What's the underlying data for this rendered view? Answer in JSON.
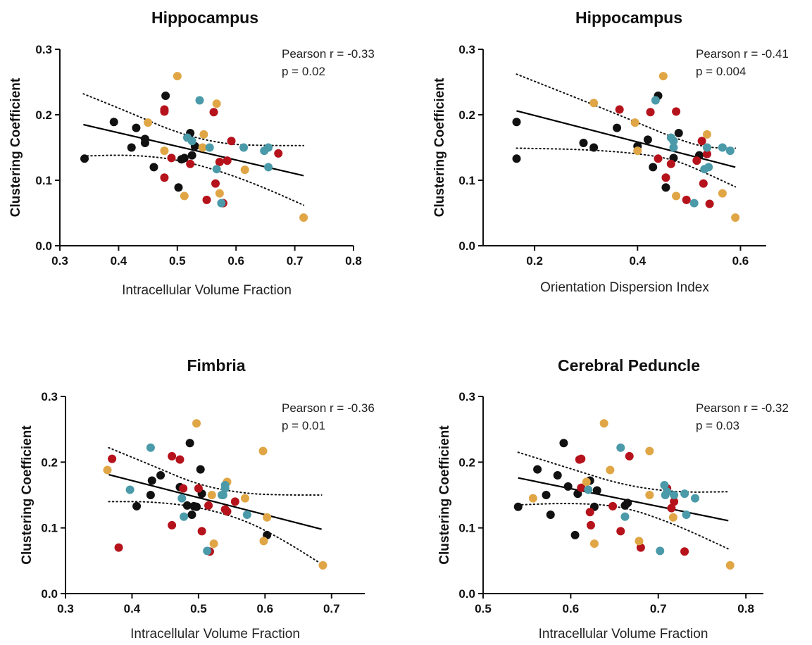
{
  "colors": {
    "black": "#111111",
    "red": "#b5121b",
    "orange": "#e0a645",
    "teal": "#4a9aa9"
  },
  "chart_data": [
    {
      "type": "scatter",
      "title": "Hippocampus",
      "xlabel": "Intracellular Volume Fraction",
      "ylabel": "Clustering Coefficient",
      "xlim": [
        0.3,
        0.8
      ],
      "ylim": [
        0.0,
        0.3
      ],
      "xticks": [
        "0.3",
        "0.4",
        "0.5",
        "0.6",
        "0.7",
        "0.8"
      ],
      "yticks": [
        "0.0",
        "0.1",
        "0.2",
        "0.3"
      ],
      "annotation": [
        "Pearson r = -0.33",
        "p = 0.02"
      ],
      "fit": {
        "x": [
          0.34,
          0.715
        ],
        "y": [
          0.185,
          0.107
        ]
      },
      "ci_upper": [
        [
          0.34,
          0.232
        ],
        [
          0.42,
          0.203
        ],
        [
          0.5,
          0.172
        ],
        [
          0.58,
          0.155
        ],
        [
          0.65,
          0.153
        ],
        [
          0.715,
          0.153
        ]
      ],
      "ci_lower": [
        [
          0.34,
          0.137
        ],
        [
          0.42,
          0.139
        ],
        [
          0.5,
          0.132
        ],
        [
          0.58,
          0.112
        ],
        [
          0.65,
          0.088
        ],
        [
          0.715,
          0.062
        ]
      ],
      "series": [
        {
          "color": "black",
          "points": [
            [
              0.342,
              0.133
            ],
            [
              0.392,
              0.189
            ],
            [
              0.422,
              0.15
            ],
            [
              0.43,
              0.18
            ],
            [
              0.445,
              0.163
            ],
            [
              0.445,
              0.157
            ],
            [
              0.46,
              0.12
            ],
            [
              0.48,
              0.229
            ],
            [
              0.502,
              0.089
            ],
            [
              0.507,
              0.132
            ],
            [
              0.512,
              0.134
            ],
            [
              0.522,
              0.172
            ],
            [
              0.525,
              0.138
            ],
            [
              0.53,
              0.152
            ]
          ]
        },
        {
          "color": "red",
          "points": [
            [
              0.478,
              0.208
            ],
            [
              0.478,
              0.205
            ],
            [
              0.478,
              0.104
            ],
            [
              0.49,
              0.134
            ],
            [
              0.522,
              0.125
            ],
            [
              0.562,
              0.204
            ],
            [
              0.565,
              0.095
            ],
            [
              0.572,
              0.128
            ],
            [
              0.578,
              0.065
            ],
            [
              0.585,
              0.13
            ],
            [
              0.592,
              0.16
            ],
            [
              0.672,
              0.141
            ],
            [
              0.55,
              0.07
            ]
          ]
        },
        {
          "color": "orange",
          "points": [
            [
              0.45,
              0.188
            ],
            [
              0.478,
              0.145
            ],
            [
              0.5,
              0.259
            ],
            [
              0.512,
              0.076
            ],
            [
              0.543,
              0.15
            ],
            [
              0.545,
              0.17
            ],
            [
              0.567,
              0.217
            ],
            [
              0.572,
              0.08
            ],
            [
              0.615,
              0.116
            ],
            [
              0.715,
              0.043
            ]
          ]
        },
        {
          "color": "teal",
          "points": [
            [
              0.517,
              0.165
            ],
            [
              0.525,
              0.16
            ],
            [
              0.538,
              0.222
            ],
            [
              0.555,
              0.15
            ],
            [
              0.567,
              0.117
            ],
            [
              0.575,
              0.065
            ],
            [
              0.613,
              0.15
            ],
            [
              0.648,
              0.145
            ],
            [
              0.655,
              0.15
            ],
            [
              0.655,
              0.12
            ]
          ]
        }
      ]
    },
    {
      "type": "scatter",
      "title": "Hippocampus",
      "xlabel": "Orientation Dispersion Index",
      "ylabel": "Clustering Coefficient",
      "xlim": [
        0.1,
        0.65
      ],
      "ylim": [
        0.0,
        0.3
      ],
      "xticks": [
        "0.2",
        "0.4",
        "0.6"
      ],
      "xtick_values": [
        0.2,
        0.4,
        0.6
      ],
      "yticks": [
        "0.0",
        "0.1",
        "0.2",
        "0.3"
      ],
      "annotation": [
        "Pearson r = -0.41",
        "p = 0.004"
      ],
      "fit": {
        "x": [
          0.165,
          0.59
        ],
        "y": [
          0.206,
          0.12
        ]
      },
      "ci_upper": [
        [
          0.165,
          0.262
        ],
        [
          0.3,
          0.22
        ],
        [
          0.4,
          0.188
        ],
        [
          0.47,
          0.165
        ],
        [
          0.53,
          0.15
        ],
        [
          0.59,
          0.149
        ]
      ],
      "ci_lower": [
        [
          0.165,
          0.149
        ],
        [
          0.3,
          0.147
        ],
        [
          0.4,
          0.141
        ],
        [
          0.47,
          0.132
        ],
        [
          0.53,
          0.112
        ],
        [
          0.59,
          0.09
        ]
      ],
      "series": [
        {
          "color": "black",
          "points": [
            [
              0.165,
              0.189
            ],
            [
              0.165,
              0.133
            ],
            [
              0.295,
              0.157
            ],
            [
              0.315,
              0.15
            ],
            [
              0.36,
              0.18
            ],
            [
              0.4,
              0.152
            ],
            [
              0.42,
              0.162
            ],
            [
              0.43,
              0.12
            ],
            [
              0.44,
              0.229
            ],
            [
              0.455,
              0.089
            ],
            [
              0.47,
              0.134
            ],
            [
              0.48,
              0.172
            ],
            [
              0.52,
              0.138
            ]
          ]
        },
        {
          "color": "red",
          "points": [
            [
              0.365,
              0.208
            ],
            [
              0.425,
              0.204
            ],
            [
              0.44,
              0.133
            ],
            [
              0.455,
              0.104
            ],
            [
              0.465,
              0.125
            ],
            [
              0.475,
              0.205
            ],
            [
              0.495,
              0.07
            ],
            [
              0.515,
              0.13
            ],
            [
              0.525,
              0.16
            ],
            [
              0.528,
              0.095
            ],
            [
              0.535,
              0.14
            ],
            [
              0.54,
              0.064
            ]
          ]
        },
        {
          "color": "orange",
          "points": [
            [
              0.315,
              0.218
            ],
            [
              0.395,
              0.188
            ],
            [
              0.4,
              0.145
            ],
            [
              0.45,
              0.259
            ],
            [
              0.475,
              0.076
            ],
            [
              0.535,
              0.15
            ],
            [
              0.535,
              0.17
            ],
            [
              0.565,
              0.08
            ],
            [
              0.59,
              0.043
            ]
          ]
        },
        {
          "color": "teal",
          "points": [
            [
              0.435,
              0.222
            ],
            [
              0.465,
              0.165
            ],
            [
              0.47,
              0.16
            ],
            [
              0.47,
              0.15
            ],
            [
              0.51,
              0.065
            ],
            [
              0.53,
              0.117
            ],
            [
              0.535,
              0.15
            ],
            [
              0.538,
              0.12
            ],
            [
              0.565,
              0.15
            ],
            [
              0.58,
              0.145
            ]
          ]
        }
      ]
    },
    {
      "type": "scatter",
      "title": "Fimbria",
      "xlabel": "Intracellular Volume Fraction",
      "ylabel": "Clustering Coefficient",
      "xlim": [
        0.3,
        0.75
      ],
      "ylim": [
        0.0,
        0.3
      ],
      "xticks": [
        "0.3",
        "0.4",
        "0.5",
        "0.6",
        "0.7"
      ],
      "xtick_values": [
        0.3,
        0.4,
        0.5,
        0.6,
        0.7
      ],
      "yticks": [
        "0.0",
        "0.1",
        "0.2",
        "0.3"
      ],
      "annotation": [
        "Pearson r = -0.36",
        "p = 0.01"
      ],
      "fit": {
        "x": [
          0.365,
          0.685
        ],
        "y": [
          0.181,
          0.098
        ]
      },
      "ci_upper": [
        [
          0.365,
          0.222
        ],
        [
          0.43,
          0.195
        ],
        [
          0.5,
          0.165
        ],
        [
          0.57,
          0.152
        ],
        [
          0.63,
          0.15
        ],
        [
          0.685,
          0.15
        ]
      ],
      "ci_lower": [
        [
          0.365,
          0.14
        ],
        [
          0.43,
          0.14
        ],
        [
          0.5,
          0.132
        ],
        [
          0.57,
          0.112
        ],
        [
          0.63,
          0.08
        ],
        [
          0.685,
          0.045
        ]
      ],
      "series": [
        {
          "color": "black",
          "points": [
            [
              0.407,
              0.133
            ],
            [
              0.428,
              0.15
            ],
            [
              0.43,
              0.172
            ],
            [
              0.443,
              0.18
            ],
            [
              0.472,
              0.162
            ],
            [
              0.483,
              0.134
            ],
            [
              0.487,
              0.229
            ],
            [
              0.49,
              0.12
            ],
            [
              0.493,
              0.133
            ],
            [
              0.497,
              0.132
            ],
            [
              0.503,
              0.189
            ],
            [
              0.505,
              0.152
            ],
            [
              0.603,
              0.089
            ]
          ]
        },
        {
          "color": "red",
          "points": [
            [
              0.37,
              0.205
            ],
            [
              0.38,
              0.07
            ],
            [
              0.46,
              0.209
            ],
            [
              0.46,
              0.104
            ],
            [
              0.472,
              0.204
            ],
            [
              0.477,
              0.16
            ],
            [
              0.5,
              0.16
            ],
            [
              0.505,
              0.095
            ],
            [
              0.515,
              0.134
            ],
            [
              0.517,
              0.064
            ],
            [
              0.54,
              0.128
            ],
            [
              0.543,
              0.125
            ],
            [
              0.555,
              0.14
            ]
          ]
        },
        {
          "color": "orange",
          "points": [
            [
              0.363,
              0.188
            ],
            [
              0.497,
              0.259
            ],
            [
              0.52,
              0.15
            ],
            [
              0.523,
              0.076
            ],
            [
              0.543,
              0.17
            ],
            [
              0.57,
              0.145
            ],
            [
              0.597,
              0.217
            ],
            [
              0.598,
              0.08
            ],
            [
              0.603,
              0.116
            ],
            [
              0.687,
              0.043
            ]
          ]
        },
        {
          "color": "teal",
          "points": [
            [
              0.397,
              0.158
            ],
            [
              0.428,
              0.222
            ],
            [
              0.475,
              0.145
            ],
            [
              0.478,
              0.117
            ],
            [
              0.513,
              0.065
            ],
            [
              0.535,
              0.15
            ],
            [
              0.537,
              0.15
            ],
            [
              0.54,
              0.16
            ],
            [
              0.54,
              0.165
            ],
            [
              0.573,
              0.12
            ]
          ]
        }
      ]
    },
    {
      "type": "scatter",
      "title": "Cerebral Peduncle",
      "xlabel": "Intracellular Volume Fraction",
      "ylabel": "Clustering Coefficient",
      "xlim": [
        0.5,
        0.82
      ],
      "ylim": [
        0.0,
        0.3
      ],
      "xticks": [
        "0.5",
        "0.6",
        "0.7",
        "0.8"
      ],
      "xtick_values": [
        0.5,
        0.6,
        0.7,
        0.8
      ],
      "yticks": [
        "0.0",
        "0.1",
        "0.2",
        "0.3"
      ],
      "annotation": [
        "Pearson r = -0.32",
        "p = 0.03"
      ],
      "fit": {
        "x": [
          0.54,
          0.78
        ],
        "y": [
          0.176,
          0.111
        ]
      },
      "ci_upper": [
        [
          0.54,
          0.215
        ],
        [
          0.6,
          0.19
        ],
        [
          0.66,
          0.165
        ],
        [
          0.72,
          0.154
        ],
        [
          0.78,
          0.155
        ]
      ],
      "ci_lower": [
        [
          0.54,
          0.135
        ],
        [
          0.6,
          0.138
        ],
        [
          0.66,
          0.133
        ],
        [
          0.72,
          0.105
        ],
        [
          0.78,
          0.068
        ]
      ],
      "series": [
        {
          "color": "black",
          "points": [
            [
              0.54,
              0.132
            ],
            [
              0.562,
              0.189
            ],
            [
              0.572,
              0.15
            ],
            [
              0.577,
              0.12
            ],
            [
              0.585,
              0.18
            ],
            [
              0.592,
              0.229
            ],
            [
              0.597,
              0.163
            ],
            [
              0.605,
              0.089
            ],
            [
              0.608,
              0.152
            ],
            [
              0.622,
              0.172
            ],
            [
              0.627,
              0.132
            ],
            [
              0.63,
              0.157
            ],
            [
              0.662,
              0.134
            ],
            [
              0.665,
              0.138
            ]
          ]
        },
        {
          "color": "red",
          "points": [
            [
              0.61,
              0.204
            ],
            [
              0.612,
              0.205
            ],
            [
              0.612,
              0.161
            ],
            [
              0.622,
              0.124
            ],
            [
              0.623,
              0.104
            ],
            [
              0.648,
              0.133
            ],
            [
              0.657,
              0.095
            ],
            [
              0.667,
              0.209
            ],
            [
              0.68,
              0.07
            ],
            [
              0.71,
              0.16
            ],
            [
              0.715,
              0.13
            ],
            [
              0.718,
              0.14
            ],
            [
              0.73,
              0.064
            ]
          ]
        },
        {
          "color": "orange",
          "points": [
            [
              0.557,
              0.145
            ],
            [
              0.618,
              0.17
            ],
            [
              0.627,
              0.076
            ],
            [
              0.638,
              0.259
            ],
            [
              0.645,
              0.188
            ],
            [
              0.69,
              0.217
            ],
            [
              0.69,
              0.15
            ],
            [
              0.678,
              0.08
            ],
            [
              0.717,
              0.116
            ],
            [
              0.782,
              0.043
            ]
          ]
        },
        {
          "color": "teal",
          "points": [
            [
              0.62,
              0.158
            ],
            [
              0.657,
              0.222
            ],
            [
              0.662,
              0.117
            ],
            [
              0.702,
              0.065
            ],
            [
              0.707,
              0.165
            ],
            [
              0.708,
              0.15
            ],
            [
              0.71,
              0.155
            ],
            [
              0.718,
              0.15
            ],
            [
              0.73,
              0.152
            ],
            [
              0.732,
              0.12
            ],
            [
              0.742,
              0.145
            ]
          ]
        }
      ]
    }
  ]
}
